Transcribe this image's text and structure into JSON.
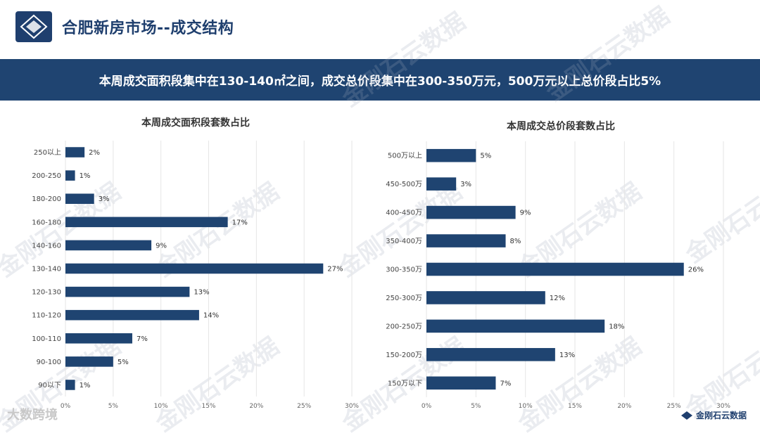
{
  "header": {
    "title": "合肥新房市场--成交结构",
    "banner": "本周成交面积段集中在130-140㎡之间，成交总价段集中在300-350万元，500万元以上总价段占比5%"
  },
  "watermark_text": "金刚石云数据",
  "footer": {
    "left_text": "大数跨境",
    "right_text": "金刚石云数据"
  },
  "colors": {
    "bar": "#1f4471",
    "banner": "#1f4471",
    "title": "#1f3f6e"
  },
  "chart_data": [
    {
      "type": "bar",
      "orientation": "horizontal",
      "title": "本周成交面积段套数占比",
      "categories": [
        "250以上",
        "200-250",
        "180-200",
        "160-180",
        "140-160",
        "130-140",
        "120-130",
        "110-120",
        "100-110",
        "90-100",
        "90以下"
      ],
      "values": [
        2,
        1,
        3,
        17,
        9,
        27,
        13,
        14,
        7,
        5,
        1
      ],
      "value_labels": [
        "2%",
        "1%",
        "3%",
        "17%",
        "9%",
        "27%",
        "13%",
        "14%",
        "7%",
        "5%",
        "1%"
      ],
      "xlim": [
        0,
        30
      ],
      "ticks": [
        0,
        5,
        10,
        15,
        20,
        25,
        30
      ],
      "tick_labels": [
        "0%",
        "5%",
        "10%",
        "15%",
        "20%",
        "25%",
        "30%"
      ],
      "grid": true
    },
    {
      "type": "bar",
      "orientation": "horizontal",
      "title": "本周成交总价段套数占比",
      "categories": [
        "500万以上",
        "450-500万",
        "400-450万",
        "350-400万",
        "300-350万",
        "250-300万",
        "200-250万",
        "150-200万",
        "150万以下"
      ],
      "values": [
        5,
        3,
        9,
        8,
        26,
        12,
        18,
        13,
        7
      ],
      "value_labels": [
        "5%",
        "3%",
        "9%",
        "8%",
        "26%",
        "12%",
        "18%",
        "13%",
        "7%"
      ],
      "xlim": [
        0,
        30
      ],
      "ticks": [
        0,
        5,
        10,
        15,
        20,
        25,
        30
      ],
      "tick_labels": [
        "0%",
        "5%",
        "10%",
        "15%",
        "20%",
        "25%",
        "30%"
      ],
      "grid": true
    }
  ]
}
